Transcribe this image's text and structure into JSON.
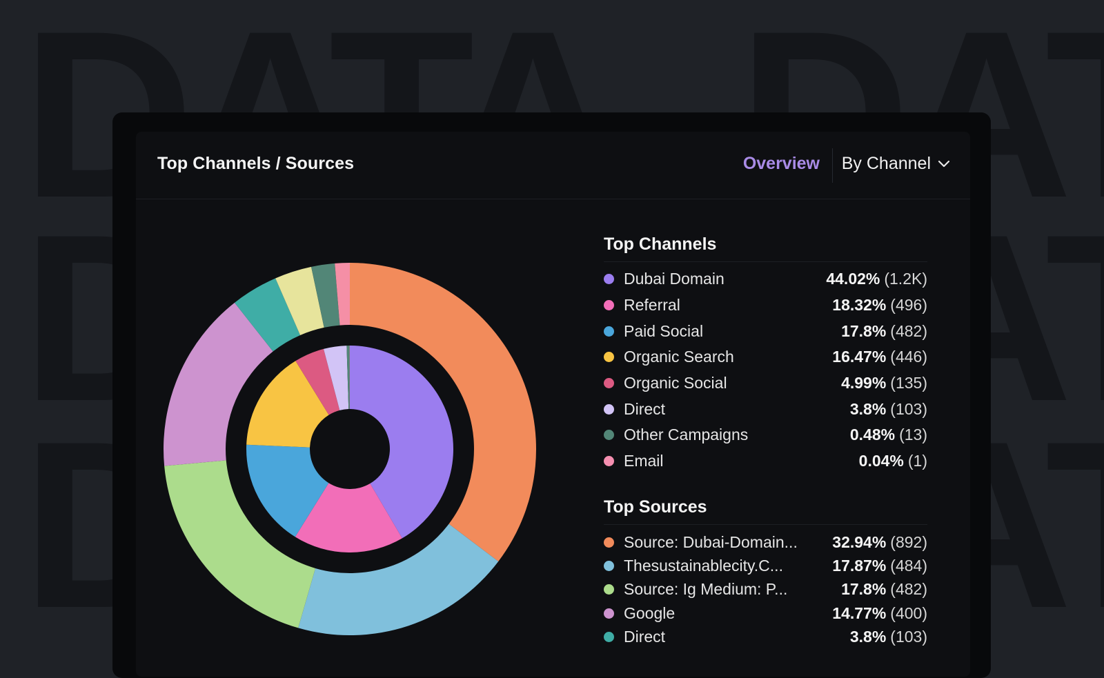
{
  "background": {
    "word": "DATA",
    "color": "#14161a"
  },
  "card": {
    "title": "Top Channels / Sources",
    "overview_label": "Overview",
    "dropdown_label": "By Channel",
    "dropdown_icon": "chevron-down-icon"
  },
  "legend": {
    "channels_heading": "Top Channels",
    "sources_heading": "Top Sources"
  },
  "chart_data": {
    "type": "pie",
    "variant": "nested-donut",
    "inner_ring": {
      "name": "Top Channels",
      "slices": [
        {
          "label": "Dubai Domain",
          "percent": "44.02%",
          "count": "(1.2K)",
          "value": 44.02,
          "color": "#9b7def"
        },
        {
          "label": "Referral",
          "percent": "18.32%",
          "count": "(496)",
          "value": 18.32,
          "color": "#f26eb8"
        },
        {
          "label": "Paid Social",
          "percent": "17.8%",
          "count": "(482)",
          "value": 17.8,
          "color": "#4aa6db"
        },
        {
          "label": "Organic Search",
          "percent": "16.47%",
          "count": "(446)",
          "value": 16.47,
          "color": "#f8c443"
        },
        {
          "label": "Organic Social",
          "percent": "4.99%",
          "count": "(135)",
          "value": 4.99,
          "color": "#dc5a82"
        },
        {
          "label": "Direct",
          "percent": "3.8%",
          "count": "(103)",
          "value": 3.8,
          "color": "#d2c4f6"
        },
        {
          "label": "Other Campaigns",
          "percent": "0.48%",
          "count": "(13)",
          "value": 0.48,
          "color": "#528677"
        },
        {
          "label": "Email",
          "percent": "0.04%",
          "count": "(1)",
          "value": 0.04,
          "color": "#f58fb0"
        }
      ]
    },
    "outer_ring": {
      "name": "Top Sources",
      "slices": [
        {
          "label": "Source: Dubai-Domain...",
          "percent": "32.94%",
          "count": "(892)",
          "value": 32.94,
          "color": "#f28b5b"
        },
        {
          "label": "Thesustainablecity.C...",
          "percent": "17.87%",
          "count": "(484)",
          "value": 17.87,
          "color": "#80c0dc"
        },
        {
          "label": "Source: Ig Medium: P...",
          "percent": "17.8%",
          "count": "(482)",
          "value": 17.8,
          "color": "#acdc8c"
        },
        {
          "label": "Google",
          "percent": "14.77%",
          "count": "(400)",
          "value": 14.77,
          "color": "#cd93cf"
        },
        {
          "label": "Direct",
          "percent": "3.8%",
          "count": "(103)",
          "value": 3.8,
          "color": "#3fada6"
        },
        {
          "label": "",
          "value": 3.0,
          "color": "#e7e49c"
        },
        {
          "label": "",
          "value": 1.9,
          "color": "#528677"
        },
        {
          "label": "",
          "value": 1.2,
          "color": "#f58fa6"
        }
      ]
    }
  }
}
